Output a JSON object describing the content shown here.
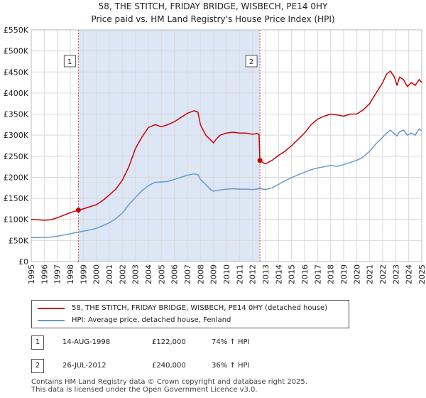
{
  "title_line1": "58, THE STITCH, FRIDAY BRIDGE, WISBECH, PE14 0HY",
  "title_line2": "Price paid vs. HM Land Registry's House Price Index (HPI)",
  "colors": {
    "price_line": "#cc0000",
    "hpi_line": "#6699cc",
    "shade": "#dde6f5",
    "grid": "#d9d9d9",
    "sale_vline": "#cc0000"
  },
  "chart_data": {
    "type": "line",
    "xlim": [
      1995,
      2025
    ],
    "ylim": [
      0,
      550000
    ],
    "y_ticks": [
      {
        "value": 0,
        "label": "£0"
      },
      {
        "value": 50000,
        "label": "£50K"
      },
      {
        "value": 100000,
        "label": "£100K"
      },
      {
        "value": 150000,
        "label": "£150K"
      },
      {
        "value": 200000,
        "label": "£200K"
      },
      {
        "value": 250000,
        "label": "£250K"
      },
      {
        "value": 300000,
        "label": "£300K"
      },
      {
        "value": 350000,
        "label": "£350K"
      },
      {
        "value": 400000,
        "label": "£400K"
      },
      {
        "value": 450000,
        "label": "£450K"
      },
      {
        "value": 500000,
        "label": "£500K"
      },
      {
        "value": 550000,
        "label": "£550K"
      }
    ],
    "x_ticks": [
      "1995",
      "1996",
      "1997",
      "1998",
      "1999",
      "2000",
      "2001",
      "2002",
      "2003",
      "2004",
      "2005",
      "2006",
      "2007",
      "2008",
      "2009",
      "2010",
      "2011",
      "2012",
      "2013",
      "2014",
      "2015",
      "2016",
      "2017",
      "2018",
      "2019",
      "2020",
      "2021",
      "2022",
      "2023",
      "2024",
      "2025"
    ],
    "shaded_range": [
      1998.62,
      2012.57
    ],
    "series": [
      {
        "name": "58, THE STITCH, FRIDAY BRIDGE, WISBECH, PE14 0HY (detached house)",
        "color": "#cc0000",
        "x": [
          1995,
          1995.5,
          1996,
          1996.5,
          1997,
          1997.5,
          1998,
          1998.62,
          1999,
          1999.5,
          2000,
          2000.5,
          2001,
          2001.5,
          2002,
          2002.5,
          2003,
          2003.5,
          2004,
          2004.5,
          2005,
          2005.5,
          2006,
          2006.5,
          2007,
          2007.5,
          2007.8,
          2008,
          2008.4,
          2008.8,
          2009,
          2009.2,
          2009.5,
          2010,
          2010.5,
          2011,
          2011.5,
          2012,
          2012.3,
          2012.5,
          2012.57,
          2012.8,
          2013,
          2013.5,
          2014,
          2014.5,
          2015,
          2015.5,
          2016,
          2016.5,
          2017,
          2017.5,
          2018,
          2018.5,
          2019,
          2019.5,
          2020,
          2020.5,
          2021,
          2021.5,
          2022,
          2022.3,
          2022.6,
          2022.9,
          2023.1,
          2023.3,
          2023.6,
          2023.9,
          2024.2,
          2024.5,
          2024.8,
          2025
        ],
        "values": [
          100000,
          99000,
          98000,
          99000,
          104000,
          110000,
          116000,
          122000,
          125000,
          130000,
          135000,
          145000,
          158000,
          172000,
          193000,
          225000,
          268000,
          295000,
          318000,
          325000,
          320000,
          325000,
          332000,
          342000,
          352000,
          358000,
          355000,
          325000,
          300000,
          288000,
          282000,
          290000,
          300000,
          305000,
          307000,
          305000,
          305000,
          302000,
          304000,
          302000,
          240000,
          235000,
          232000,
          240000,
          252000,
          262000,
          275000,
          290000,
          305000,
          325000,
          338000,
          345000,
          350000,
          348000,
          345000,
          350000,
          350000,
          360000,
          375000,
          400000,
          425000,
          445000,
          452000,
          438000,
          418000,
          438000,
          432000,
          415000,
          425000,
          418000,
          432000,
          425000
        ]
      },
      {
        "name": "HPI: Average price, detached house, Fenland",
        "color": "#6699cc",
        "x": [
          1995,
          1995.5,
          1996,
          1996.5,
          1997,
          1997.5,
          1998,
          1998.62,
          1999,
          1999.5,
          2000,
          2000.5,
          2001,
          2001.5,
          2002,
          2002.5,
          2003,
          2003.5,
          2004,
          2004.5,
          2005,
          2005.5,
          2006,
          2006.5,
          2007,
          2007.5,
          2007.8,
          2008,
          2008.4,
          2008.8,
          2009,
          2009.2,
          2009.5,
          2010,
          2010.5,
          2011,
          2011.5,
          2012,
          2012.3,
          2012.5,
          2012.57,
          2012.8,
          2013,
          2013.5,
          2014,
          2014.5,
          2015,
          2015.5,
          2016,
          2016.5,
          2017,
          2017.5,
          2018,
          2018.5,
          2019,
          2019.5,
          2020,
          2020.5,
          2021,
          2021.5,
          2022,
          2022.3,
          2022.6,
          2022.9,
          2023.1,
          2023.3,
          2023.6,
          2023.9,
          2024.2,
          2024.5,
          2024.8,
          2025
        ],
        "values": [
          57000,
          57000,
          57500,
          58000,
          60000,
          63000,
          66000,
          70000,
          72000,
          75000,
          79000,
          85000,
          92000,
          102000,
          115000,
          135000,
          152000,
          168000,
          180000,
          188000,
          189000,
          190000,
          195000,
          200000,
          205000,
          208000,
          206000,
          195000,
          183000,
          170000,
          167000,
          168000,
          170000,
          172000,
          173000,
          172000,
          172000,
          171000,
          172000,
          173000,
          174000,
          172000,
          171000,
          175000,
          183000,
          192000,
          199000,
          206000,
          212000,
          218000,
          222000,
          225000,
          228000,
          226000,
          230000,
          235000,
          240000,
          248000,
          262000,
          280000,
          295000,
          305000,
          312000,
          303000,
          298000,
          308000,
          312000,
          300000,
          305000,
          300000,
          315000,
          310000
        ]
      }
    ],
    "sales": [
      {
        "id": "1",
        "x": 1998.62,
        "value": 122000
      },
      {
        "id": "2",
        "x": 2012.57,
        "value": 240000
      }
    ]
  },
  "legend": {
    "price_label": "58, THE STITCH, FRIDAY BRIDGE, WISBECH, PE14 0HY (detached house)",
    "hpi_label": "HPI: Average price, detached house, Fenland"
  },
  "transactions": [
    {
      "id": "1",
      "date": "14-AUG-1998",
      "price": "£122,000",
      "hpi_change": "74% ↑ HPI"
    },
    {
      "id": "2",
      "date": "26-JUL-2012",
      "price": "£240,000",
      "hpi_change": "36% ↑ HPI"
    }
  ],
  "footer": {
    "line1": "Contains HM Land Registry data © Crown copyright and database right 2025.",
    "line2": "This data is licensed under the Open Government Licence v3.0."
  }
}
